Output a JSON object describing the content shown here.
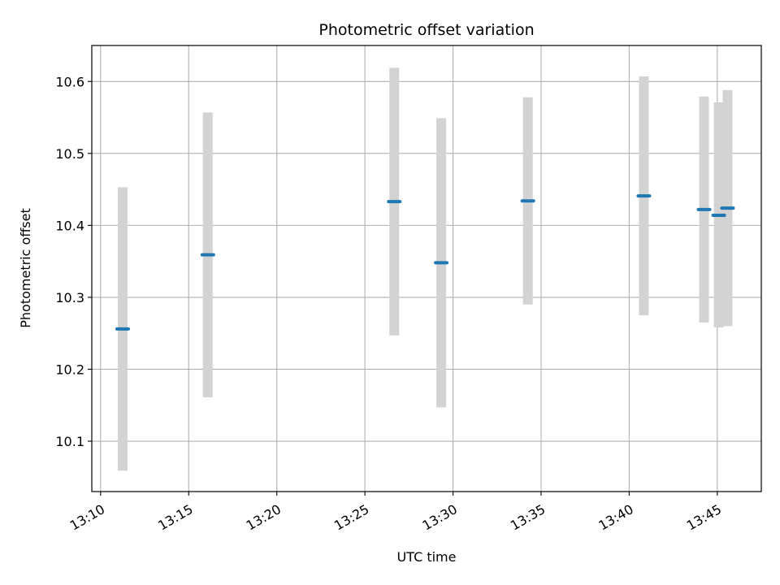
{
  "chart_data": {
    "type": "scatter",
    "title": "Photometric offset variation",
    "xlabel": "UTC time",
    "ylabel": "Photometric offset",
    "x_axis_kind": "time",
    "xlim": [
      "13:09:30",
      "13:47:30"
    ],
    "ylim": [
      10.03,
      10.65
    ],
    "grid": true,
    "xticks": [
      "13:10",
      "13:15",
      "13:20",
      "13:25",
      "13:30",
      "13:35",
      "13:40",
      "13:45"
    ],
    "yticks": [
      10.1,
      10.2,
      10.3,
      10.4,
      10.5,
      10.6
    ],
    "points": [
      {
        "x": "13:11:15",
        "y": 10.256,
        "y_low": 10.059,
        "y_high": 10.453
      },
      {
        "x": "13:16:05",
        "y": 10.359,
        "y_low": 10.161,
        "y_high": 10.557
      },
      {
        "x": "13:26:40",
        "y": 10.433,
        "y_low": 10.247,
        "y_high": 10.619
      },
      {
        "x": "13:29:20",
        "y": 10.348,
        "y_low": 10.147,
        "y_high": 10.549
      },
      {
        "x": "13:34:15",
        "y": 10.434,
        "y_low": 10.29,
        "y_high": 10.578
      },
      {
        "x": "13:40:50",
        "y": 10.441,
        "y_low": 10.275,
        "y_high": 10.607
      },
      {
        "x": "13:44:15",
        "y": 10.422,
        "y_low": 10.265,
        "y_high": 10.579
      },
      {
        "x": "13:45:05",
        "y": 10.414,
        "y_low": 10.258,
        "y_high": 10.571
      },
      {
        "x": "13:45:35",
        "y": 10.424,
        "y_low": 10.26,
        "y_high": 10.588
      }
    ],
    "colors": {
      "point": "#1f77b4",
      "errorbar": "#d3d3d3",
      "grid": "#b0b0b0",
      "axes": "#000000"
    }
  }
}
